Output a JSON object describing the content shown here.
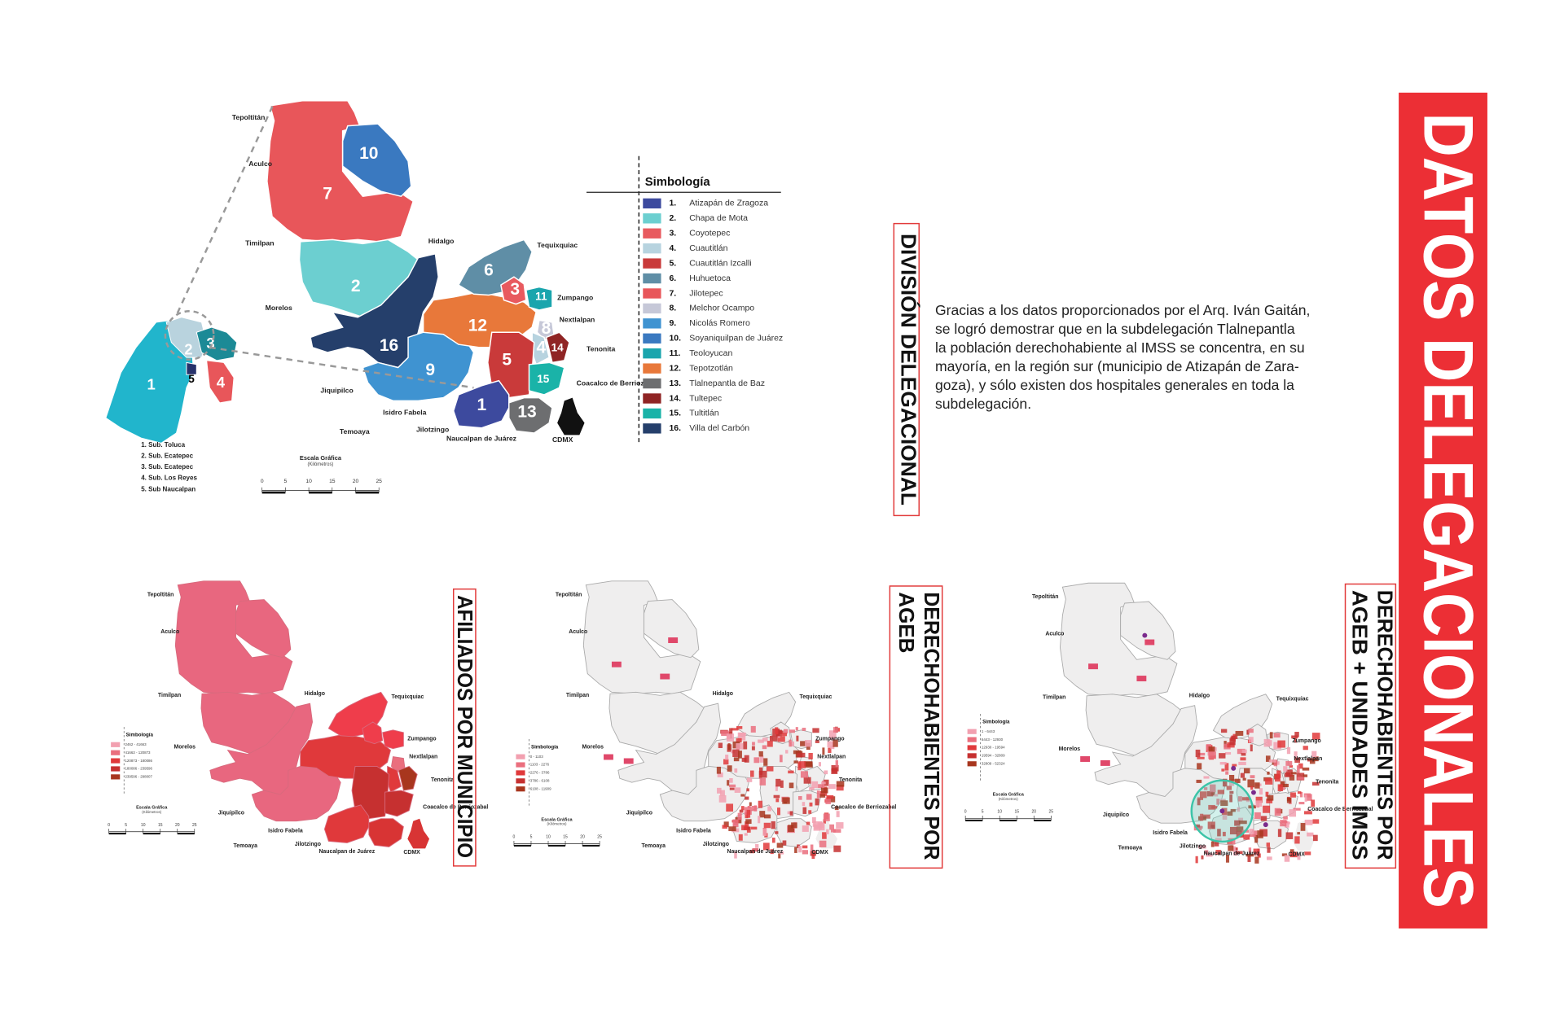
{
  "title": "DATOS DELEGACIONALES",
  "division": {
    "heading": "DIVISIÓN DELEGACIONAL",
    "paragraph": [
      "Gracias a los datos proporcionados por el Arq. Iván Gaitán,",
      "se logró demostrar que en la subdelegación Tlalnepantla",
      "la población derechohabiente al IMSS se concentra, en su",
      "mayoría, en la región sur (municipio de Atizapán de Zara-",
      "goza), y sólo existen dos hospitales generales en toda la",
      "subdelegación."
    ],
    "legend_title": "Simbología",
    "legend": [
      {
        "num": "1.",
        "name": "Atizapán de Zragoza",
        "map_label": "1",
        "color": "#3d4a9e"
      },
      {
        "num": "2.",
        "name": "Chapa de Mota",
        "map_label": "2",
        "color": "#6ccfd0"
      },
      {
        "num": "3.",
        "name": "Coyotepec",
        "map_label": "3",
        "color": "#e85a5f"
      },
      {
        "num": "4.",
        "name": "Cuautitlán",
        "map_label": "4",
        "color": "#b7d3df"
      },
      {
        "num": "5.",
        "name": "Cuautitlán Izcalli",
        "map_label": "5",
        "color": "#c93a3a"
      },
      {
        "num": "6.",
        "name": "Huhuetoca",
        "map_label": "6",
        "color": "#5f8ea6"
      },
      {
        "num": "7.",
        "name": "Jilotepec",
        "map_label": "7",
        "color": "#e8565a"
      },
      {
        "num": "8.",
        "name": "Melchor Ocampo",
        "map_label": "8",
        "color": "#c6c8d8"
      },
      {
        "num": "9.",
        "name": "Nicolás Romero",
        "map_label": "9",
        "color": "#3f93d1"
      },
      {
        "num": "10.",
        "name": "Soyaniquilpan de Juárez",
        "map_label": "10",
        "color": "#3a79c0"
      },
      {
        "num": "11.",
        "name": "Teoloyucan",
        "map_label": "11",
        "color": "#1aa5ad"
      },
      {
        "num": "12.",
        "name": "Tepotzotlán",
        "map_label": "12",
        "color": "#e8783a"
      },
      {
        "num": "13.",
        "name": "Tlalnepantla de Baz",
        "map_label": "13",
        "color": "#6d6e70"
      },
      {
        "num": "14.",
        "name": "Tultepec",
        "map_label": "14",
        "color": "#8f2424"
      },
      {
        "num": "15.",
        "name": "Tultitlán",
        "map_label": "15",
        "color": "#1ab3a8"
      },
      {
        "num": "16.",
        "name": "Villa del Carbón",
        "map_label": "16",
        "color": "#253f6b"
      }
    ],
    "inset": [
      {
        "label": "1",
        "name": "1.   Sub. Toluca",
        "color": "#21b5cc"
      },
      {
        "label": "2",
        "name": "2. Sub. Ecatepec",
        "color": "#b9d3de"
      },
      {
        "label": "3",
        "name": "3. Sub. Ecatepec",
        "color": "#1c8a96"
      },
      {
        "label": "4",
        "name": "4. Sub. Los Reyes",
        "color": "#e8565a"
      },
      {
        "label": "5",
        "name": "5. Sub Naucalpan",
        "color": "#26316b"
      }
    ],
    "scale_title": "Escala Gráfica",
    "scale_unit": "(Kilómetros)",
    "scale_ticks": [
      "0",
      "5",
      "10",
      "15",
      "20",
      "25"
    ]
  },
  "places": [
    "Tepoltitán",
    "Aculco",
    "Timilpan",
    "Hidalgo",
    "Tequixquiac",
    "Zumpango",
    "Morelos",
    "Nextlalpan",
    "Tenonita",
    "Coacalco de Berriozabal",
    "Jiquipilco",
    "Isidro Fabela",
    "Jilotzingo",
    "Naucalpan de Juárez",
    "Temoaya",
    "CDMX"
  ],
  "small_maps": [
    {
      "heading": [
        "AFILIADOS POR MUNICIPIO"
      ],
      "legend_title": "Simbología",
      "ranges": [
        "2462 - 41663",
        "41663 - 120873",
        "120873 - 180086",
        "180086 - 239596",
        "239596 - 298007"
      ],
      "range_colors": [
        "#f2a0b0",
        "#ea6f7e",
        "#e0393b",
        "#c63030",
        "#a8361e"
      ],
      "region_colors": [
        "#e0393b",
        "#e8677f",
        "#ef3d4b",
        "#e0393b",
        "#c63030",
        "#ef3d4b",
        "#e8677f",
        "#ea6f7e",
        "#e8677f",
        "#e8677f",
        "#ef3d4b",
        "#e0393b",
        "#d83434",
        "#a8361e",
        "#c63030",
        "#e8677f"
      ],
      "patches": false,
      "ring": false
    },
    {
      "heading": [
        "DERECHOHABIENTES POR",
        "AGEB"
      ],
      "legend_title": "Simbología",
      "ranges": [
        "0 - 1103",
        "1103 - 2276",
        "2276 - 3786",
        "3786 - 6108",
        "6108 - 11909"
      ],
      "range_colors": [
        "#f2a0b0",
        "#ea6f7e",
        "#e0393b",
        "#c63030",
        "#a8361e"
      ],
      "region_colors": [
        "#efeeee",
        "#efeeee",
        "#efeeee",
        "#efeeee",
        "#efeeee",
        "#efeeee",
        "#efeeee",
        "#efeeee",
        "#efeeee",
        "#efeeee",
        "#efeeee",
        "#efeeee",
        "#efeeee",
        "#efeeee",
        "#efeeee",
        "#efeeee"
      ],
      "patches": true,
      "ring": false
    },
    {
      "heading": [
        "DERECHOHABIENTES POR",
        "AGEB + UNIDADES IMSS"
      ],
      "legend_title": "Simbología",
      "ranges": [
        "1 - 6443",
        "6443 - 12930",
        "12930 - 19594",
        "19594 - 32809",
        "32809 - 52324"
      ],
      "range_colors": [
        "#f2a0b0",
        "#ea6f7e",
        "#e0393b",
        "#c63030",
        "#a8361e"
      ],
      "region_colors": [
        "#efeeee",
        "#efeeee",
        "#efeeee",
        "#efeeee",
        "#efeeee",
        "#efeeee",
        "#efeeee",
        "#efeeee",
        "#efeeee",
        "#efeeee",
        "#efeeee",
        "#efeeee",
        "#efeeee",
        "#efeeee",
        "#efeeee",
        "#efeeee"
      ],
      "patches": true,
      "ring": true
    }
  ]
}
